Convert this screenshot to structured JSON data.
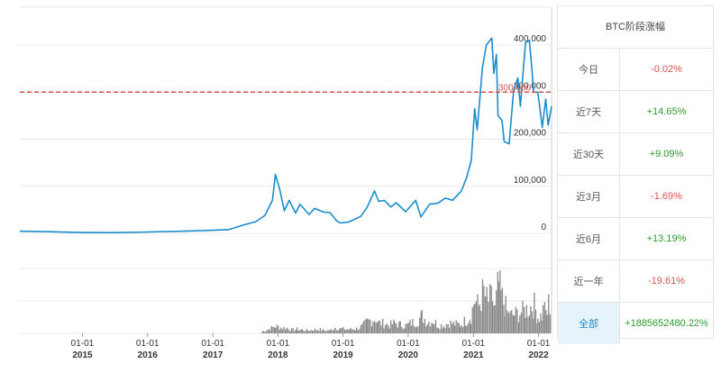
{
  "chart_data": {
    "type": "line",
    "title": "",
    "y_ticks": [
      "0",
      "100,000",
      "200,000",
      "300,000",
      "400,000"
    ],
    "ylim": [
      0,
      420000
    ],
    "reference_line": {
      "value": 300000,
      "label": "300,000",
      "color": "#d9534f"
    },
    "x_ticks": [
      {
        "date": "2015-01-01",
        "label": "01-01",
        "year": "2015"
      },
      {
        "date": "2016-01-01",
        "label": "01-01",
        "year": "2016"
      },
      {
        "date": "2017-01-01",
        "label": "01-01",
        "year": "2017"
      },
      {
        "date": "2018-01-01",
        "label": "01-01",
        "year": "2018"
      },
      {
        "date": "2019-01-01",
        "label": "01-01",
        "year": "2019"
      },
      {
        "date": "2020-01-01",
        "label": "01-01",
        "year": "2020"
      },
      {
        "date": "2021-01-01",
        "label": "01-01",
        "year": "2021"
      },
      {
        "date": "2022-01-01",
        "label": "01-01",
        "year": "2022"
      }
    ],
    "xlim": [
      "2014-01-15",
      "2022-03-15"
    ],
    "price_series": {
      "color": "#1a8ccc",
      "points": [
        [
          "2014-01-15",
          4500
        ],
        [
          "2014-07-01",
          3500
        ],
        [
          "2015-01-01",
          1800
        ],
        [
          "2015-07-01",
          1600
        ],
        [
          "2016-01-01",
          2800
        ],
        [
          "2016-07-01",
          4400
        ],
        [
          "2017-01-01",
          6500
        ],
        [
          "2017-04-01",
          8000
        ],
        [
          "2017-06-15",
          17000
        ],
        [
          "2017-09-01",
          25000
        ],
        [
          "2017-10-20",
          38000
        ],
        [
          "2017-12-01",
          70000
        ],
        [
          "2017-12-18",
          125000
        ],
        [
          "2018-01-10",
          95000
        ],
        [
          "2018-02-06",
          48000
        ],
        [
          "2018-03-05",
          70000
        ],
        [
          "2018-04-10",
          43000
        ],
        [
          "2018-05-05",
          62000
        ],
        [
          "2018-06-25",
          40000
        ],
        [
          "2018-07-25",
          53000
        ],
        [
          "2018-09-15",
          45000
        ],
        [
          "2018-10-20",
          44000
        ],
        [
          "2018-11-25",
          27000
        ],
        [
          "2018-12-15",
          22000
        ],
        [
          "2019-02-01",
          24000
        ],
        [
          "2019-04-10",
          36000
        ],
        [
          "2019-05-15",
          55000
        ],
        [
          "2019-06-26",
          90000
        ],
        [
          "2019-07-20",
          68000
        ],
        [
          "2019-08-20",
          70000
        ],
        [
          "2019-09-26",
          56000
        ],
        [
          "2019-10-26",
          65000
        ],
        [
          "2019-12-18",
          46000
        ],
        [
          "2020-02-12",
          70000
        ],
        [
          "2020-03-13",
          35000
        ],
        [
          "2020-05-01",
          62000
        ],
        [
          "2020-06-15",
          64000
        ],
        [
          "2020-07-28",
          75000
        ],
        [
          "2020-09-05",
          70000
        ],
        [
          "2020-10-25",
          90000
        ],
        [
          "2020-11-25",
          120000
        ],
        [
          "2020-12-20",
          155000
        ],
        [
          "2021-01-08",
          265000
        ],
        [
          "2021-01-22",
          220000
        ],
        [
          "2021-02-20",
          350000
        ],
        [
          "2021-03-14",
          400000
        ],
        [
          "2021-04-14",
          415000
        ],
        [
          "2021-04-25",
          340000
        ],
        [
          "2021-05-10",
          380000
        ],
        [
          "2021-05-19",
          250000
        ],
        [
          "2021-06-10",
          240000
        ],
        [
          "2021-06-22",
          195000
        ],
        [
          "2021-07-20",
          190000
        ],
        [
          "2021-08-15",
          305000
        ],
        [
          "2021-09-07",
          330000
        ],
        [
          "2021-09-21",
          270000
        ],
        [
          "2021-10-20",
          405000
        ],
        [
          "2021-11-10",
          410000
        ],
        [
          "2021-11-26",
          345000
        ],
        [
          "2021-12-04",
          300000
        ],
        [
          "2021-12-28",
          300000
        ],
        [
          "2022-01-22",
          225000
        ],
        [
          "2022-02-10",
          285000
        ],
        [
          "2022-02-24",
          230000
        ],
        [
          "2022-03-15",
          270000
        ]
      ]
    },
    "volume_series": {
      "color": "#888888",
      "bars": [
        [
          "2017-10-01",
          3
        ],
        [
          "2017-11-15",
          8
        ],
        [
          "2017-12-15",
          12
        ],
        [
          "2018-01-15",
          10
        ],
        [
          "2018-02-15",
          9
        ],
        [
          "2018-03-15",
          6
        ],
        [
          "2018-04-15",
          7
        ],
        [
          "2018-05-15",
          6
        ],
        [
          "2018-06-15",
          5
        ],
        [
          "2018-07-15",
          6
        ],
        [
          "2018-08-15",
          7
        ],
        [
          "2018-09-15",
          5
        ],
        [
          "2018-10-15",
          5
        ],
        [
          "2018-11-15",
          10
        ],
        [
          "2018-12-15",
          8
        ],
        [
          "2019-01-15",
          7
        ],
        [
          "2019-02-15",
          7
        ],
        [
          "2019-03-15",
          8
        ],
        [
          "2019-04-15",
          12
        ],
        [
          "2019-05-15",
          20
        ],
        [
          "2019-06-15",
          24
        ],
        [
          "2019-07-01",
          26
        ],
        [
          "2019-07-15",
          18
        ],
        [
          "2019-08-15",
          17
        ],
        [
          "2019-09-15",
          14
        ],
        [
          "2019-10-15",
          18
        ],
        [
          "2019-11-15",
          15
        ],
        [
          "2019-12-15",
          13
        ],
        [
          "2020-01-15",
          18
        ],
        [
          "2020-02-15",
          20
        ],
        [
          "2020-03-15",
          30
        ],
        [
          "2020-04-15",
          20
        ],
        [
          "2020-05-15",
          22
        ],
        [
          "2020-06-15",
          14
        ],
        [
          "2020-07-15",
          14
        ],
        [
          "2020-08-15",
          18
        ],
        [
          "2020-09-15",
          16
        ],
        [
          "2020-10-15",
          15
        ],
        [
          "2020-11-15",
          22
        ],
        [
          "2020-12-15",
          30
        ],
        [
          "2021-01-05",
          58
        ],
        [
          "2021-01-25",
          45
        ],
        [
          "2021-02-10",
          62
        ],
        [
          "2021-02-25",
          70
        ],
        [
          "2021-03-15",
          55
        ],
        [
          "2021-04-15",
          60
        ],
        [
          "2021-04-28",
          40
        ],
        [
          "2021-05-19",
          85
        ],
        [
          "2021-06-01",
          65
        ],
        [
          "2021-06-20",
          50
        ],
        [
          "2021-07-15",
          30
        ],
        [
          "2021-08-15",
          32
        ],
        [
          "2021-09-15",
          35
        ],
        [
          "2021-10-15",
          40
        ],
        [
          "2021-11-15",
          45
        ],
        [
          "2021-12-05",
          48
        ],
        [
          "2021-12-25",
          28
        ],
        [
          "2022-01-15",
          30
        ],
        [
          "2022-01-24",
          40
        ],
        [
          "2022-02-15",
          35
        ],
        [
          "2022-02-24",
          52
        ],
        [
          "2022-03-10",
          28
        ]
      ],
      "vmax": 100
    }
  },
  "stats_panel": {
    "title": "BTC阶段涨幅",
    "rows": [
      {
        "label": "今日",
        "value": "-0.02%",
        "trend": "down"
      },
      {
        "label": "近7天",
        "value": "+14.65%",
        "trend": "up"
      },
      {
        "label": "近30天",
        "value": "+9.09%",
        "trend": "up"
      },
      {
        "label": "近3月",
        "value": "-1.69%",
        "trend": "down"
      },
      {
        "label": "近6月",
        "value": "+13.19%",
        "trend": "up"
      },
      {
        "label": "近一年",
        "value": "-19.61%",
        "trend": "down"
      },
      {
        "label": "全部",
        "value": "+1885652480.22%",
        "trend": "up",
        "active": true
      }
    ]
  }
}
